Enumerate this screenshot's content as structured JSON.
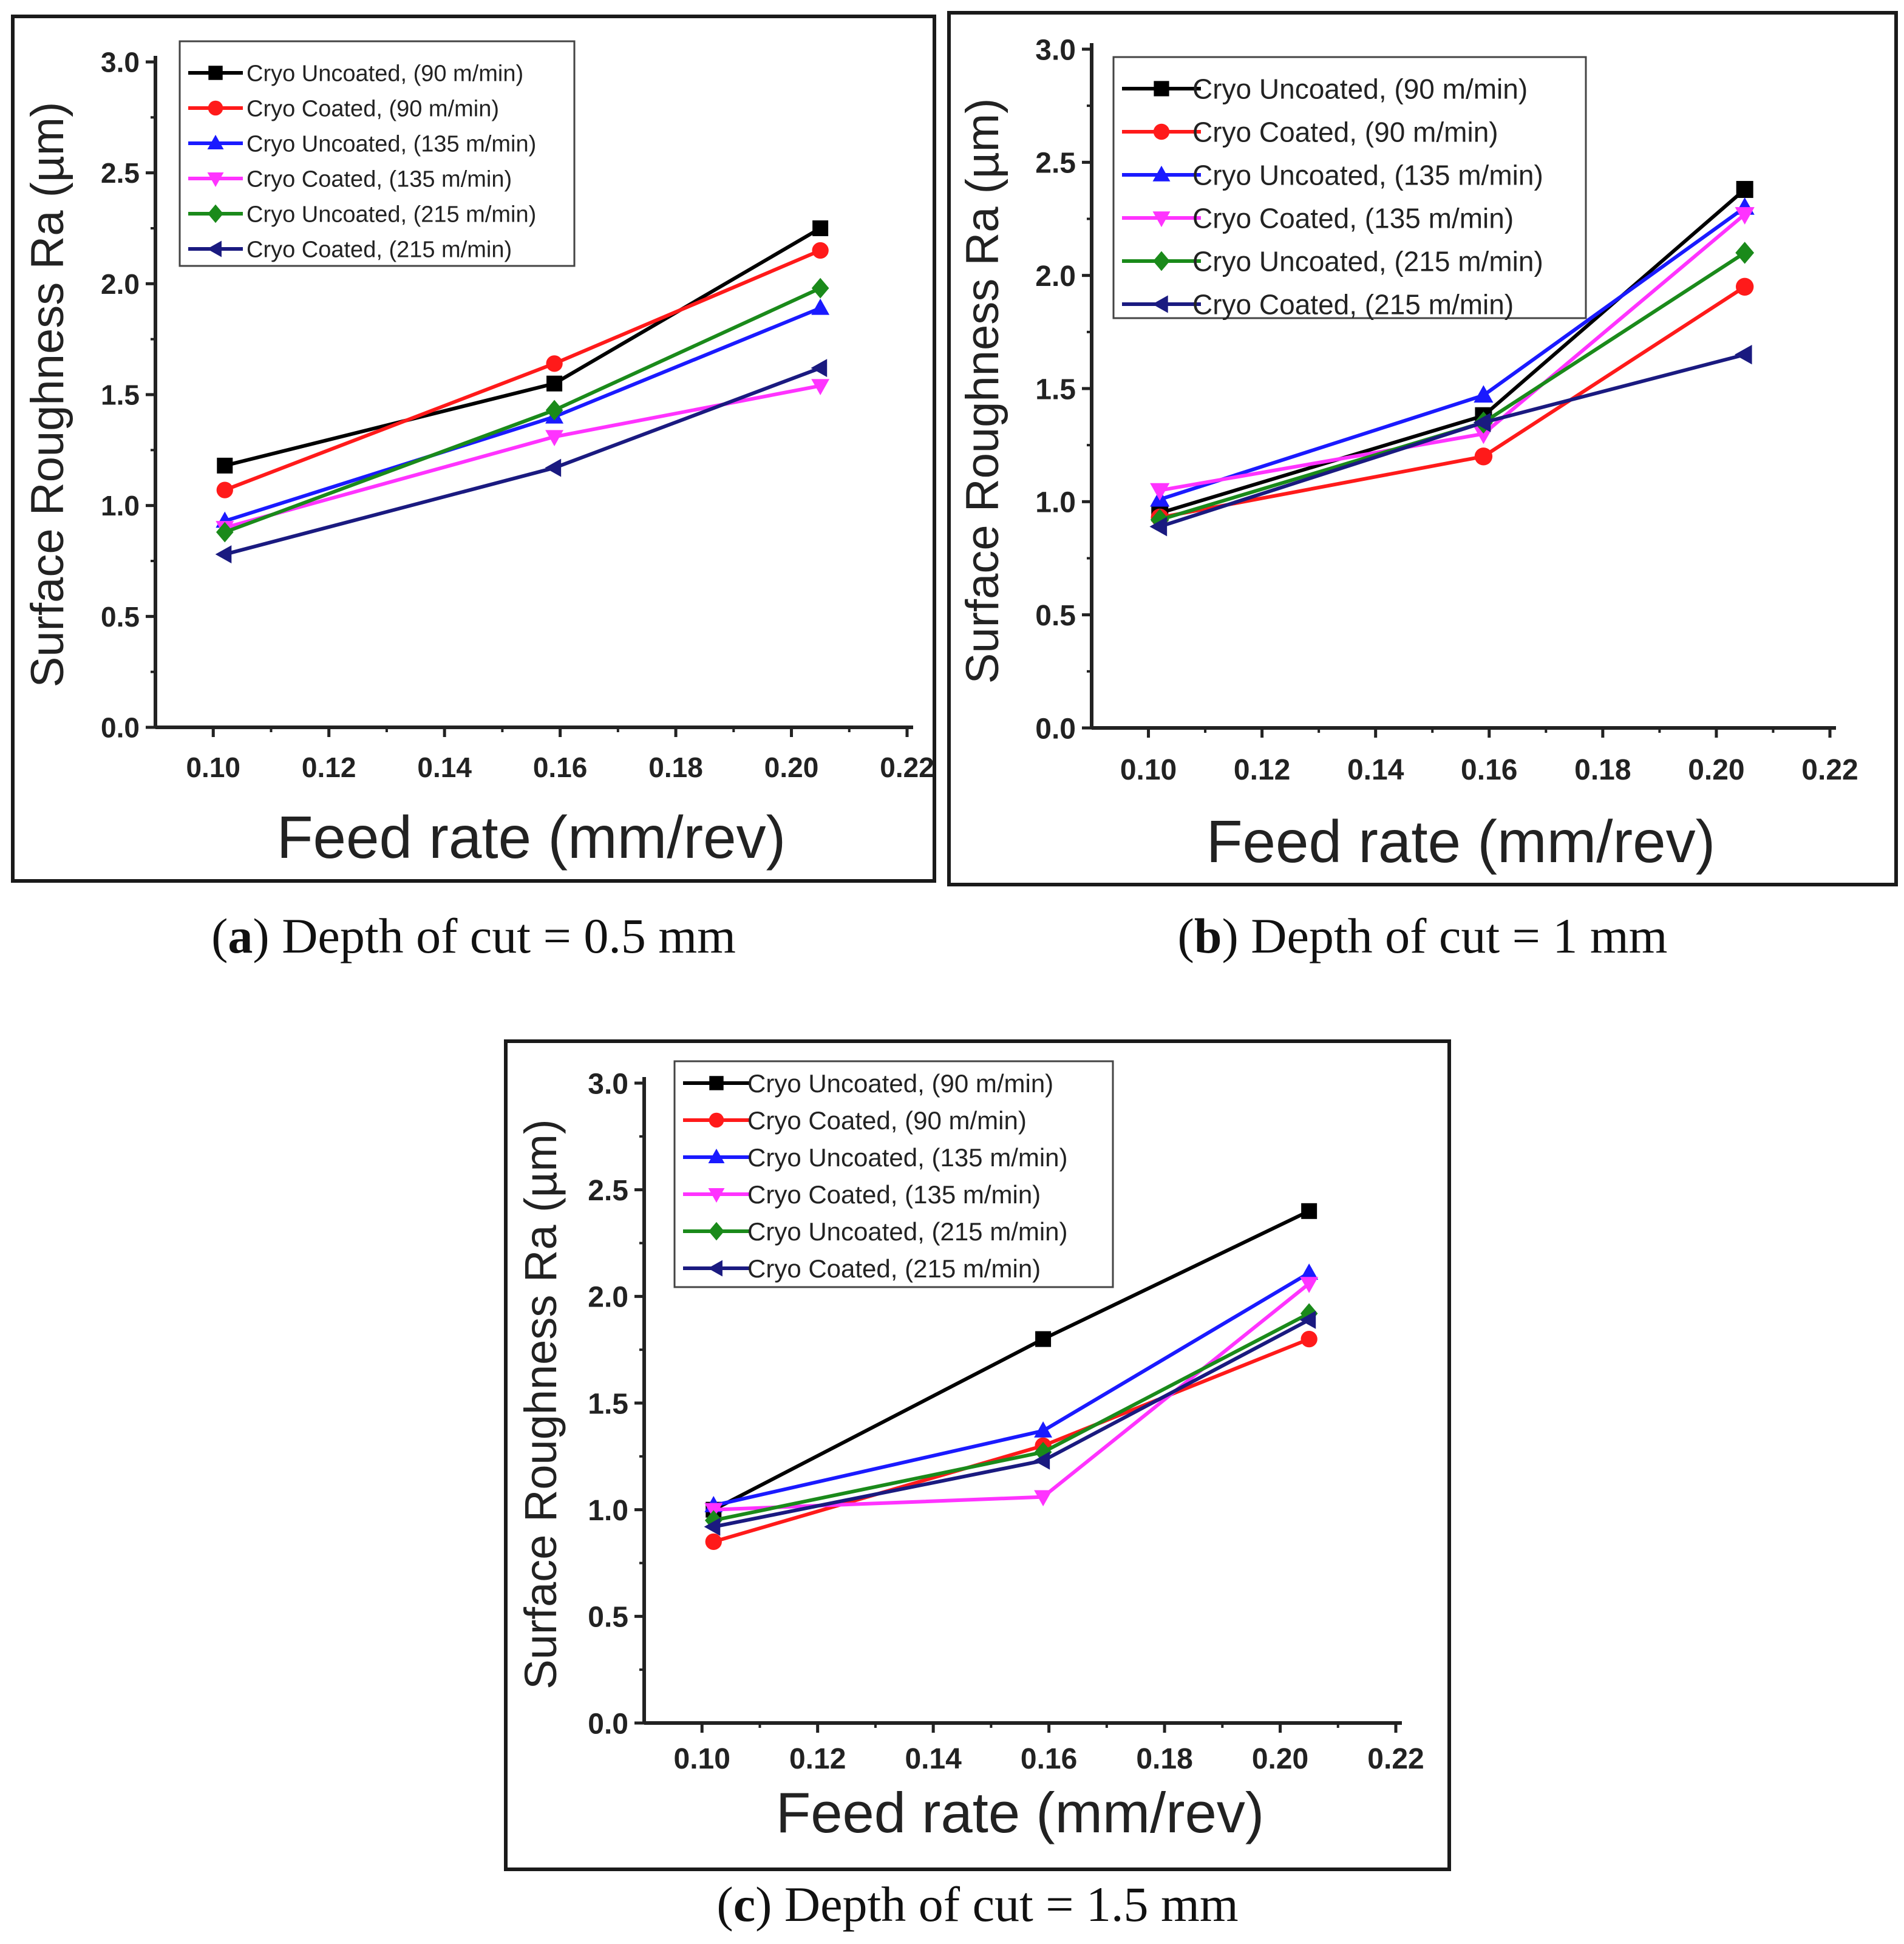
{
  "figure": {
    "captions": [
      {
        "letter": "a",
        "text": ") Depth of cut = 0.5 mm"
      },
      {
        "letter": "b",
        "text": ") Depth of cut = 1 mm"
      },
      {
        "letter": "c",
        "text": ") Depth of cut = 1.5 mm"
      }
    ]
  },
  "chart_data": [
    {
      "type": "line",
      "id": "a",
      "xlabel": "Feed rate (mm/rev)",
      "ylabel": "Surface Roughness Ra (µm)",
      "xlim": [
        0.09,
        0.22
      ],
      "ylim": [
        0.0,
        3.0
      ],
      "xticks": [
        "0.10",
        "0.12",
        "0.14",
        "0.16",
        "0.18",
        "0.20",
        "0.22"
      ],
      "yticks": [
        "0.0",
        "0.5",
        "1.0",
        "1.5",
        "2.0",
        "2.5",
        "3.0"
      ],
      "legend_position": "top-left",
      "x": [
        0.102,
        0.159,
        0.205
      ],
      "series": [
        {
          "name": "Cryo Uncoated, (90 m/min)",
          "color": "#000000",
          "marker": "square",
          "values": [
            1.18,
            1.55,
            2.25
          ]
        },
        {
          "name": "Cryo Coated, (90 m/min)",
          "color": "#ff1a1a",
          "marker": "circle",
          "values": [
            1.07,
            1.64,
            2.15
          ]
        },
        {
          "name": "Cryo Uncoated, (135 m/min)",
          "color": "#1a1aff",
          "marker": "triangle-up",
          "values": [
            0.93,
            1.4,
            1.89
          ]
        },
        {
          "name": "Cryo Coated, (135 m/min)",
          "color": "#ff33ff",
          "marker": "triangle-down",
          "values": [
            0.9,
            1.31,
            1.54
          ]
        },
        {
          "name": "Cryo Uncoated, (215 m/min)",
          "color": "#1a8a1a",
          "marker": "diamond",
          "values": [
            0.88,
            1.43,
            1.98
          ]
        },
        {
          "name": "Cryo Coated, (215 m/min)",
          "color": "#1a1a80",
          "marker": "triangle-left",
          "values": [
            0.78,
            1.17,
            1.62
          ]
        }
      ]
    },
    {
      "type": "line",
      "id": "b",
      "xlabel": "Feed rate (mm/rev)",
      "ylabel": "Surface Roughness Ra (µm)",
      "xlim": [
        0.09,
        0.22
      ],
      "ylim": [
        0.0,
        3.0
      ],
      "xticks": [
        "0.10",
        "0.12",
        "0.14",
        "0.16",
        "0.18",
        "0.20",
        "0.22"
      ],
      "yticks": [
        "0.0",
        "0.5",
        "1.0",
        "1.5",
        "2.0",
        "2.5",
        "3.0"
      ],
      "legend_position": "top-left",
      "x": [
        0.102,
        0.159,
        0.205
      ],
      "series": [
        {
          "name": "Cryo Uncoated, (90 m/min)",
          "color": "#000000",
          "marker": "square",
          "values": [
            0.95,
            1.38,
            2.38
          ]
        },
        {
          "name": "Cryo Coated, (90 m/min)",
          "color": "#ff1a1a",
          "marker": "circle",
          "values": [
            0.93,
            1.2,
            1.95
          ]
        },
        {
          "name": "Cryo Uncoated, (135 m/min)",
          "color": "#1a1aff",
          "marker": "triangle-up",
          "values": [
            1.01,
            1.47,
            2.3
          ]
        },
        {
          "name": "Cryo Coated, (135 m/min)",
          "color": "#ff33ff",
          "marker": "triangle-down",
          "values": [
            1.05,
            1.3,
            2.27
          ]
        },
        {
          "name": "Cryo Uncoated, (215 m/min)",
          "color": "#1a8a1a",
          "marker": "diamond",
          "values": [
            0.92,
            1.35,
            2.1
          ]
        },
        {
          "name": "Cryo  Coated, (215 m/min)",
          "color": "#1a1a80",
          "marker": "triangle-left",
          "values": [
            0.89,
            1.35,
            1.65
          ]
        }
      ]
    },
    {
      "type": "line",
      "id": "c",
      "xlabel": "Feed rate (mm/rev)",
      "ylabel": "Surface Roughness Ra (µm)",
      "xlim": [
        0.09,
        0.22
      ],
      "ylim": [
        0.0,
        3.0
      ],
      "xticks": [
        "0.10",
        "0.12",
        "0.14",
        "0.16",
        "0.18",
        "0.20",
        "0.22"
      ],
      "yticks": [
        "0.0",
        "0.5",
        "1.0",
        "1.5",
        "2.0",
        "2.5",
        "3.0"
      ],
      "legend_position": "top-left",
      "x": [
        0.102,
        0.159,
        0.205
      ],
      "series": [
        {
          "name": "Cryo Uncoated, (90 m/min)",
          "color": "#000000",
          "marker": "square",
          "values": [
            1.0,
            1.8,
            2.4
          ]
        },
        {
          "name": "Cryo Coated, (90 m/min)",
          "color": "#ff1a1a",
          "marker": "circle",
          "values": [
            0.85,
            1.3,
            1.8
          ]
        },
        {
          "name": "Cryo Uncoated, (135 m/min)",
          "color": "#1a1aff",
          "marker": "triangle-up",
          "values": [
            1.02,
            1.37,
            2.11
          ]
        },
        {
          "name": "Cryo Coated, (135 m/min)",
          "color": "#ff33ff",
          "marker": "triangle-down",
          "values": [
            1.0,
            1.06,
            2.06
          ]
        },
        {
          "name": "Cryo Uncoated, (215 m/min)",
          "color": "#1a8a1a",
          "marker": "diamond",
          "values": [
            0.95,
            1.27,
            1.92
          ]
        },
        {
          "name": "Cryo Coated, (215 m/min)",
          "color": "#1a1a80",
          "marker": "triangle-left",
          "values": [
            0.92,
            1.23,
            1.89
          ]
        }
      ]
    }
  ]
}
